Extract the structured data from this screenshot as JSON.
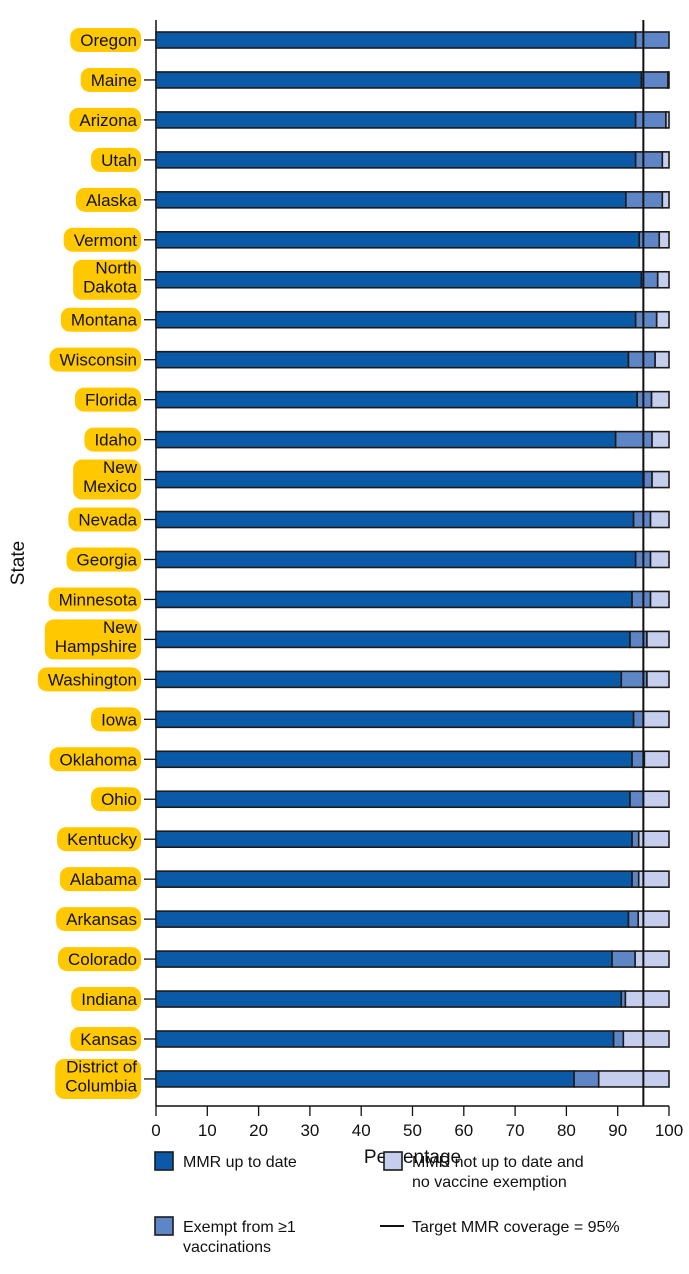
{
  "chart_data": {
    "type": "bar",
    "orientation": "horizontal",
    "stacked": true,
    "title": "",
    "xlabel": "Percentage",
    "ylabel": "State",
    "xlim": [
      0,
      100
    ],
    "xticks": [
      0,
      10,
      20,
      30,
      40,
      50,
      60,
      70,
      80,
      90,
      100
    ],
    "grid": false,
    "legend_position": "bottom",
    "categories": [
      [
        "Oregon"
      ],
      [
        "Maine"
      ],
      [
        "Arizona"
      ],
      [
        "Utah"
      ],
      [
        "Alaska"
      ],
      [
        "Vermont"
      ],
      [
        "North",
        "Dakota"
      ],
      [
        "Montana"
      ],
      [
        "Wisconsin"
      ],
      [
        "Florida"
      ],
      [
        "Idaho"
      ],
      [
        "New",
        "Mexico"
      ],
      [
        "Nevada"
      ],
      [
        "Georgia"
      ],
      [
        "Minnesota"
      ],
      [
        "New",
        "Hampshire"
      ],
      [
        "Washington"
      ],
      [
        "Iowa"
      ],
      [
        "Oklahoma"
      ],
      [
        "Ohio"
      ],
      [
        "Kentucky"
      ],
      [
        "Alabama"
      ],
      [
        "Arkansas"
      ],
      [
        "Colorado"
      ],
      [
        "Indiana"
      ],
      [
        "Kansas"
      ],
      [
        "District of",
        "Columbia"
      ]
    ],
    "series": [
      {
        "name": "MMR up to date",
        "color": "#0b5aa8",
        "values": [
          93.5,
          94.6,
          93.5,
          93.5,
          91.6,
          94.2,
          94.6,
          93.5,
          92.1,
          93.8,
          89.6,
          95.1,
          93.1,
          93.5,
          92.8,
          92.4,
          90.7,
          93.1,
          92.8,
          92.4,
          92.8,
          92.8,
          92.1,
          88.9,
          90.7,
          89.2,
          81.5
        ]
      },
      {
        "name": "Exempt from ≥1 vaccinations",
        "color": "#5e86c6",
        "values": [
          6.5,
          5.2,
          5.9,
          5.2,
          7.1,
          3.9,
          3.2,
          4.1,
          5.2,
          2.8,
          7.1,
          1.6,
          3.3,
          2.9,
          3.6,
          3.3,
          5.0,
          1.9,
          2.4,
          2.6,
          1.3,
          1.3,
          1.9,
          4.5,
          0.8,
          1.9,
          4.8
        ]
      },
      {
        "name": "MMR not up to date and no vaccine exemption",
        "color": "#c5cfed",
        "values": [
          0.0,
          0.2,
          0.6,
          1.3,
          1.3,
          1.9,
          2.2,
          2.4,
          2.7,
          3.4,
          3.3,
          3.3,
          3.6,
          3.6,
          3.6,
          4.3,
          4.3,
          5.0,
          4.8,
          5.0,
          5.9,
          5.9,
          6.0,
          6.6,
          8.5,
          8.9,
          13.7
        ]
      }
    ],
    "reference_line": {
      "value": 95,
      "label": "Target MMR coverage = 95%",
      "color": "#111111"
    },
    "legend": [
      {
        "series": 0,
        "label": [
          "MMR up to date"
        ]
      },
      {
        "series": 2,
        "label": [
          "MMR not up to date and",
          "no vaccine exemption"
        ]
      },
      {
        "series": 1,
        "label": [
          "Exempt from ≥1",
          "vaccinations"
        ]
      },
      {
        "line": true,
        "label": [
          "Target MMR coverage = 95%"
        ]
      }
    ],
    "label_highlight_color": "#ffc800"
  }
}
